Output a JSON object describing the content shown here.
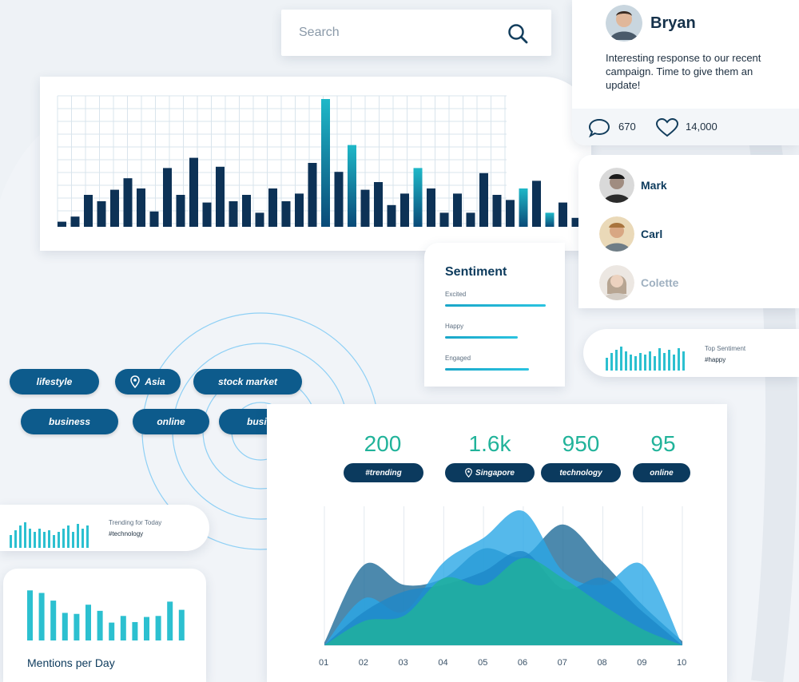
{
  "search": {
    "placeholder": "Search",
    "icon": "search-icon"
  },
  "bar_chart": {
    "values": [
      0.04,
      0.08,
      0.25,
      0.2,
      0.29,
      0.38,
      0.3,
      0.12,
      0.46,
      0.25,
      0.54,
      0.19,
      0.47,
      0.2,
      0.25,
      0.11,
      0.3,
      0.2,
      0.26,
      0.5,
      1.0,
      0.43,
      0.64,
      0.29,
      0.35,
      0.17,
      0.26,
      0.46,
      0.3,
      0.11,
      0.26,
      0.11,
      0.42,
      0.25,
      0.21,
      0.3,
      0.36,
      0.11,
      0.19,
      0.07
    ],
    "highlight_indices": [
      20,
      22,
      27,
      35,
      37
    ]
  },
  "post": {
    "author": "Bryan",
    "message": "Interesting response to our recent campaign. Time to give them an update!",
    "comments": "670",
    "likes": "14,000"
  },
  "people": [
    {
      "name": "Mark",
      "color": "#0c3a5c"
    },
    {
      "name": "Carl",
      "color": "#0c3a5c"
    },
    {
      "name": "Colette",
      "color": "#9fb0c0"
    }
  ],
  "sentiment": {
    "title": "Sentiment",
    "items": [
      {
        "label": "Excited",
        "level": 0.9
      },
      {
        "label": "Happy",
        "level": 0.65
      },
      {
        "label": "Engaged",
        "level": 0.75
      }
    ]
  },
  "top_sentiment": {
    "label": "Top Sentiment",
    "value": "#happy"
  },
  "tags": [
    {
      "label": "lifestyle"
    },
    {
      "label": "Asia",
      "icon": "location-pin-icon"
    },
    {
      "label": "stock market"
    },
    {
      "label": "business"
    },
    {
      "label": "online"
    },
    {
      "label": "business"
    }
  ],
  "trending": {
    "label": "Trending for Today",
    "value": "#technology"
  },
  "mentions": {
    "title": "Mentions per Day",
    "values": [
      0.98,
      0.93,
      0.78,
      0.54,
      0.52,
      0.7,
      0.58,
      0.35,
      0.48,
      0.36,
      0.46,
      0.48,
      0.76,
      0.6
    ]
  },
  "stats": [
    {
      "value": "200",
      "label": "#trending"
    },
    {
      "value": "1.6k",
      "label": "Singapore",
      "icon": "location-pin-icon"
    },
    {
      "value": "950",
      "label": "technology"
    },
    {
      "value": "95",
      "label": "online"
    }
  ],
  "area_chart": {
    "x_labels": [
      "01",
      "02",
      "03",
      "04",
      "05",
      "06",
      "07",
      "08",
      "09",
      "10"
    ],
    "series": [
      {
        "color": "#1f6b99",
        "values": [
          0.02,
          0.6,
          0.45,
          0.5,
          0.72,
          0.66,
          0.9,
          0.62,
          0.3,
          0.03
        ]
      },
      {
        "color": "#2aa7e6",
        "values": [
          0.0,
          0.35,
          0.25,
          0.62,
          0.8,
          1.0,
          0.55,
          0.45,
          0.6,
          0.0
        ]
      },
      {
        "color": "#1e88c8",
        "values": [
          0.0,
          0.25,
          0.4,
          0.45,
          0.55,
          0.7,
          0.42,
          0.5,
          0.25,
          0.0
        ]
      },
      {
        "color": "#21b39a",
        "values": [
          0.0,
          0.18,
          0.22,
          0.5,
          0.45,
          0.65,
          0.5,
          0.3,
          0.12,
          0.0
        ]
      }
    ]
  }
}
